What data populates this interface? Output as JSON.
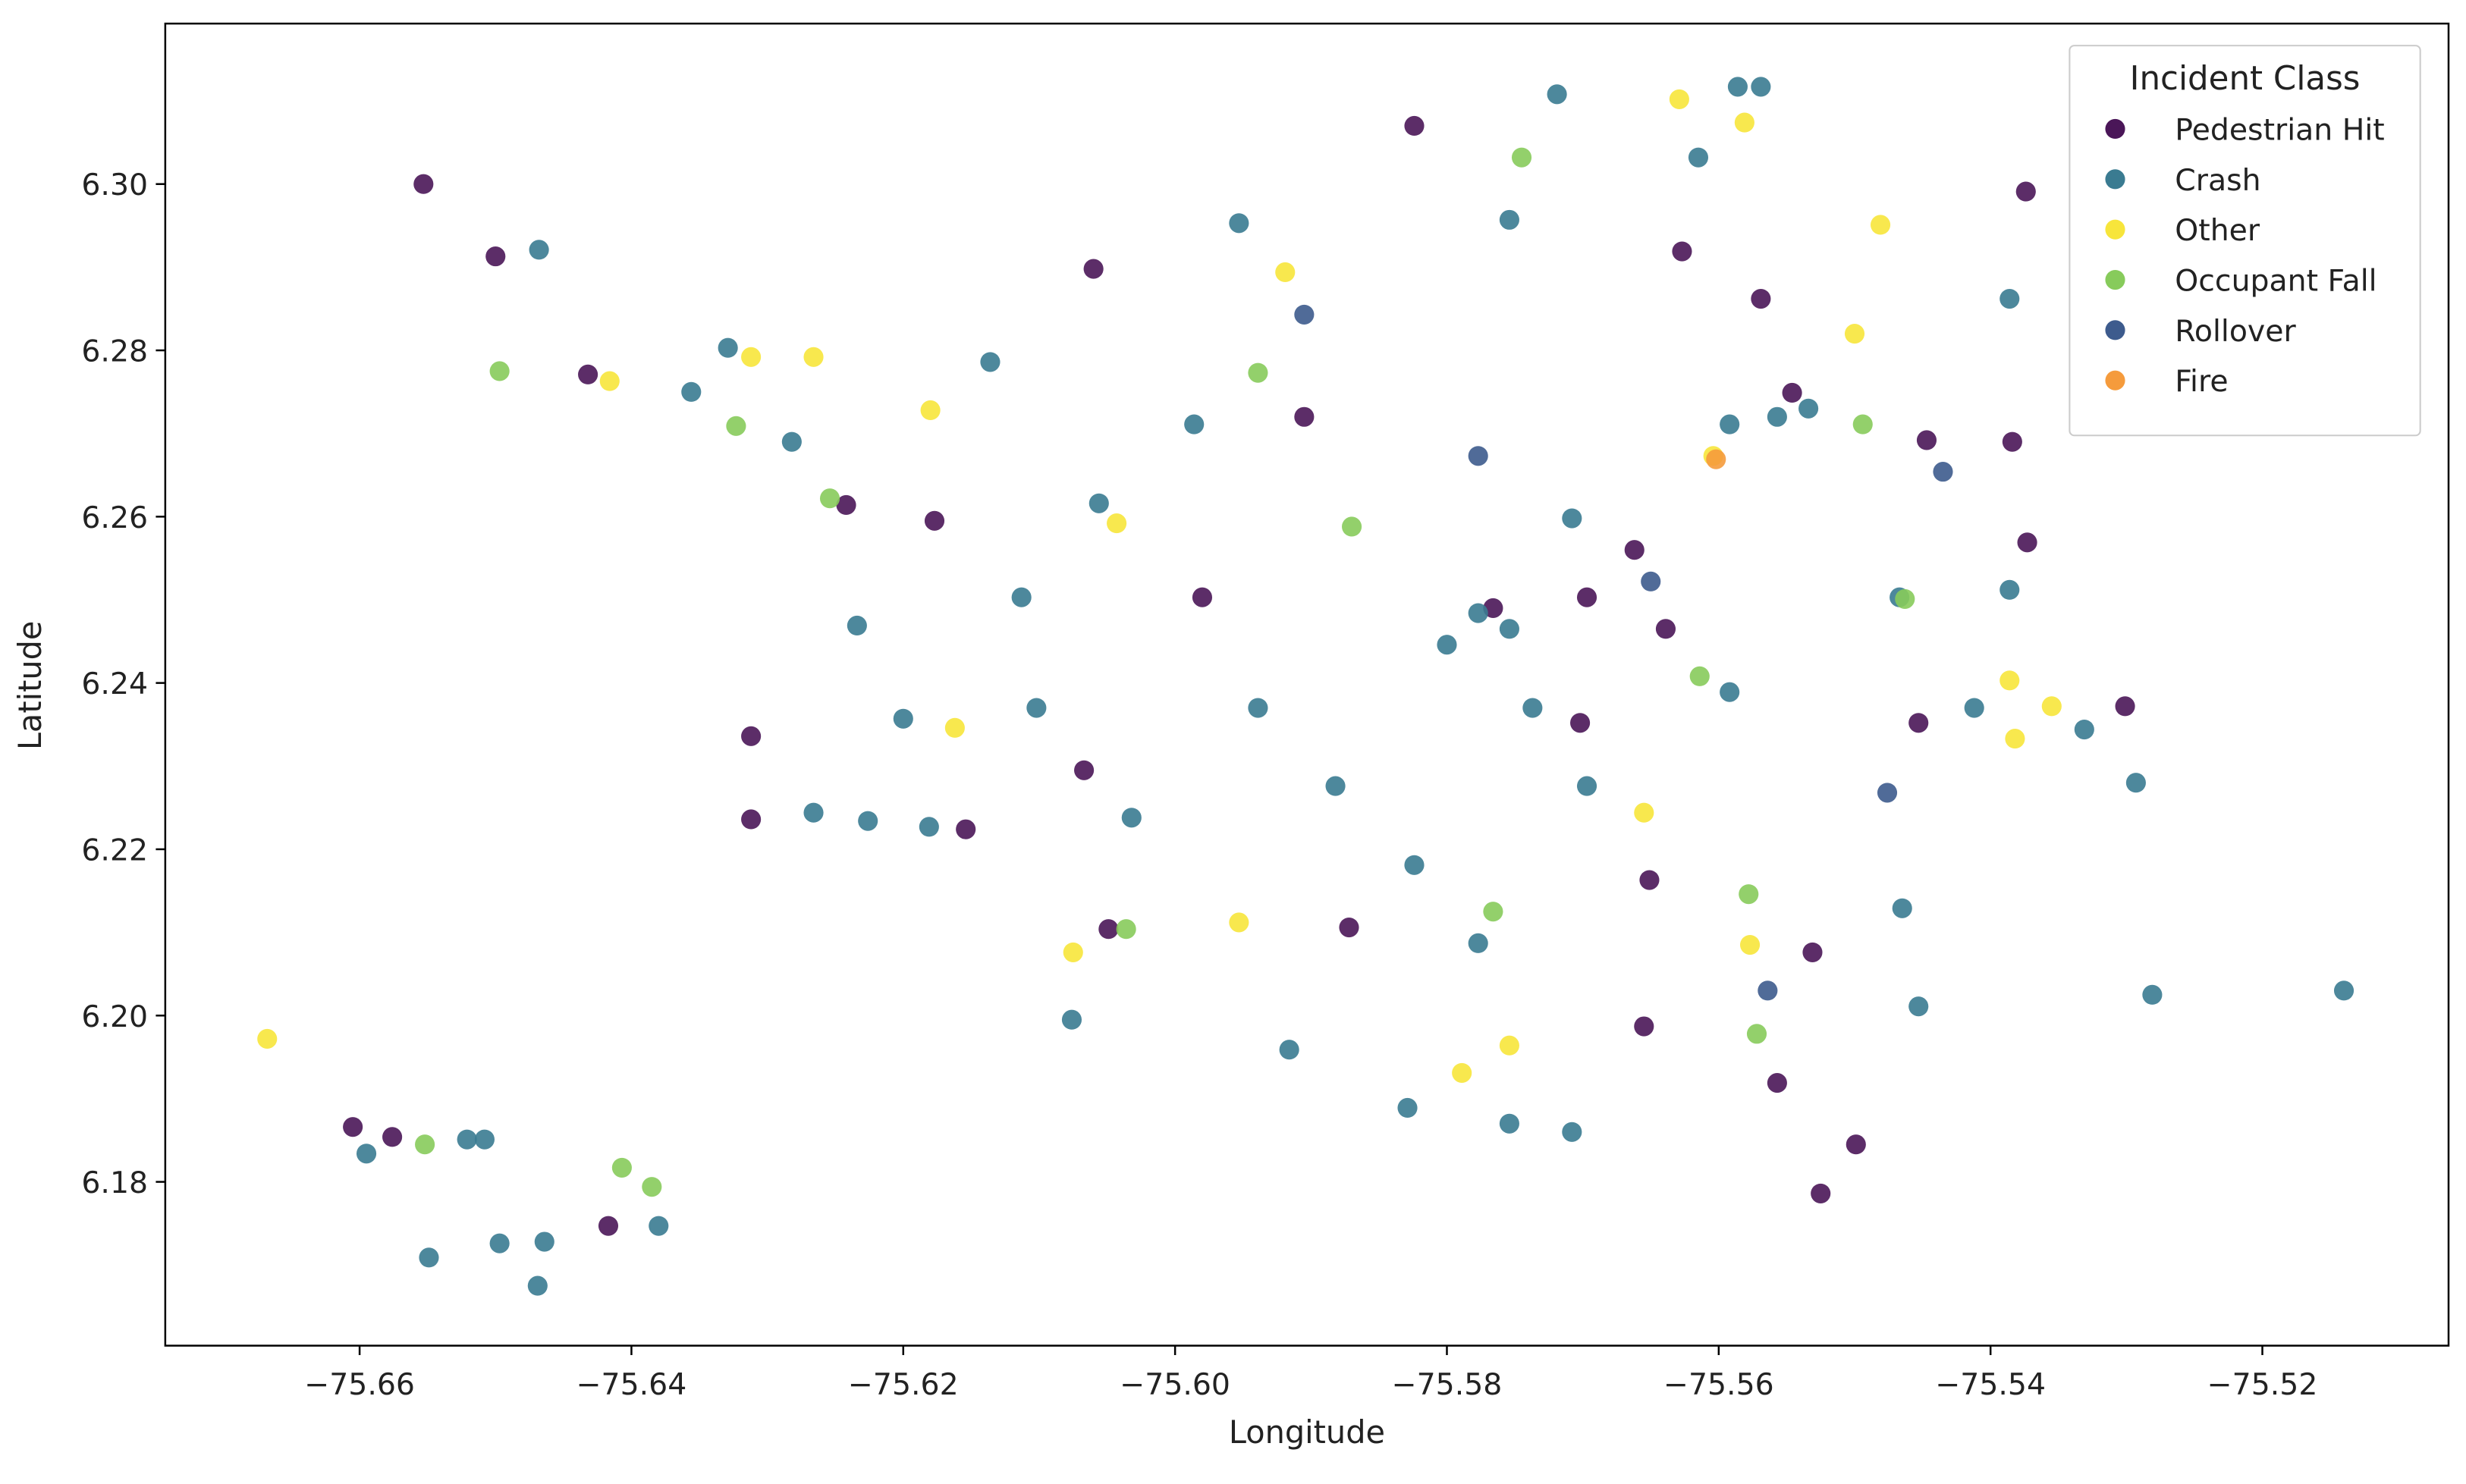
{
  "chart_data": {
    "type": "scatter",
    "x_label": "Longitude",
    "y_label": "Latitude",
    "legend_title": "Incident Class",
    "legend_position": "upper right",
    "grid": false,
    "xlim": [
      -75.6743,
      -75.5063
    ],
    "ylim": [
      6.1603,
      6.3193
    ],
    "xticks": [
      {
        "value": -75.66,
        "label": "−75.66"
      },
      {
        "value": -75.64,
        "label": "−75.64"
      },
      {
        "value": -75.62,
        "label": "−75.62"
      },
      {
        "value": -75.6,
        "label": "−75.60"
      },
      {
        "value": -75.58,
        "label": "−75.58"
      },
      {
        "value": -75.56,
        "label": "−75.56"
      },
      {
        "value": -75.54,
        "label": "−75.54"
      },
      {
        "value": -75.52,
        "label": "−75.52"
      }
    ],
    "yticks": [
      6.18,
      {
        "value": 6.2,
        "label": "6.20"
      },
      6.22,
      6.24,
      6.26,
      6.28,
      {
        "value": 6.3,
        "label": "6.30"
      }
    ],
    "series": [
      {
        "name": "Pedestrian Hit",
        "color": "#4a1658",
        "x": [
          -75.6553,
          -75.65,
          -75.6432,
          -75.6605,
          -75.6576,
          -75.6417,
          -75.5525,
          -75.5499,
          -75.6312,
          -75.6312,
          -75.606,
          -75.5374,
          -75.5384,
          -75.5373,
          -75.5301,
          -75.6242,
          -75.6177,
          -75.6154,
          -75.6049,
          -75.5655,
          -75.5557,
          -75.5531,
          -75.5766,
          -75.5697,
          -75.5662,
          -75.5639,
          -75.5546,
          -75.5569,
          -75.5627,
          -75.5824,
          -75.5905,
          -75.598,
          -75.5872,
          -75.5702,
          -75.5453,
          -75.5447,
          -75.5651,
          -75.6067
        ],
        "values": [
          6.3,
          6.2913,
          6.2771,
          6.1866,
          6.1854,
          6.1747,
          6.1786,
          6.1845,
          6.2336,
          6.2236,
          6.2898,
          6.2991,
          6.269,
          6.2569,
          6.2372,
          6.2614,
          6.2595,
          6.2224,
          6.2104,
          6.1987,
          6.1919,
          6.2076,
          6.249,
          6.2503,
          6.256,
          6.2465,
          6.2749,
          6.2862,
          6.2919,
          6.307,
          6.272,
          6.2503,
          6.2106,
          6.2352,
          6.2352,
          6.2692,
          6.2163,
          6.2295
        ]
      },
      {
        "name": "Crash",
        "color": "#3a7b91",
        "x": [
          -75.6468,
          -75.6595,
          -75.6521,
          -75.6508,
          -75.6549,
          -75.6497,
          -75.6464,
          -75.6469,
          -75.638,
          -75.6356,
          -75.6329,
          -75.6282,
          -75.6266,
          -75.6226,
          -75.6181,
          -75.62,
          -75.6234,
          -75.6076,
          -75.5953,
          -75.5281,
          -75.514,
          -75.5293,
          -75.5331,
          -75.5412,
          -75.5465,
          -75.5453,
          -75.5708,
          -75.5754,
          -75.5916,
          -75.5829,
          -75.5586,
          -75.5569,
          -75.5615,
          -75.5754,
          -75.5719,
          -75.5777,
          -75.5754,
          -75.58,
          -75.5737,
          -75.5708,
          -75.5592,
          -75.5557,
          -75.5534,
          -75.5986,
          -75.6056,
          -75.6113,
          -75.5939,
          -75.5882,
          -75.5824,
          -75.5777,
          -75.6136,
          -75.5386,
          -75.5467,
          -75.5386,
          -75.5592,
          -75.5697,
          -75.6032,
          -75.6102
        ],
        "values": [
          6.2921,
          6.1834,
          6.1851,
          6.1851,
          6.1709,
          6.1726,
          6.1728,
          6.1675,
          6.1747,
          6.275,
          6.2803,
          6.269,
          6.2244,
          6.2234,
          6.2227,
          6.2357,
          6.2469,
          6.1995,
          6.2953,
          6.2025,
          6.203,
          6.228,
          6.2344,
          6.237,
          6.2129,
          6.2011,
          6.186,
          6.187,
          6.1959,
          6.1889,
          6.3117,
          6.3117,
          6.3032,
          6.2957,
          6.3108,
          6.2484,
          6.2465,
          6.2446,
          6.237,
          6.2598,
          6.2711,
          6.272,
          6.273,
          6.2711,
          6.2616,
          6.2503,
          6.237,
          6.2276,
          6.2181,
          6.2087,
          6.2786,
          6.2862,
          6.2503,
          6.2512,
          6.2389,
          6.2276,
          6.2238,
          6.237
        ]
      },
      {
        "name": "Other",
        "color": "#f7e53b",
        "x": [
          -75.6668,
          -75.6416,
          -75.6312,
          -75.6266,
          -75.618,
          -75.6162,
          -75.6075,
          -75.5953,
          -75.5919,
          -75.5629,
          -75.5581,
          -75.5481,
          -75.5382,
          -75.5355,
          -75.5386,
          -75.5789,
          -75.5754,
          -75.5655,
          -75.5577,
          -75.6043,
          -75.55,
          -75.5604
        ],
        "values": [
          6.1972,
          6.2763,
          6.2792,
          6.2792,
          6.2728,
          6.2346,
          6.2076,
          6.2112,
          6.2894,
          6.3102,
          6.3074,
          6.2951,
          6.2333,
          6.2372,
          6.2403,
          6.1931,
          6.1964,
          6.2244,
          6.2085,
          6.2592,
          6.282,
          6.2673
        ]
      },
      {
        "name": "Occupant Fall",
        "color": "#87cb5b",
        "x": [
          -75.6497,
          -75.6552,
          -75.6407,
          -75.6385,
          -75.6254,
          -75.6323,
          -75.6036,
          -75.5572,
          -75.5578,
          -75.5463,
          -75.5494,
          -75.5745,
          -75.5939,
          -75.587,
          -75.5766,
          -75.5614
        ],
        "values": [
          6.2775,
          6.1845,
          6.1817,
          6.1794,
          6.2622,
          6.2709,
          6.2104,
          6.1978,
          6.2146,
          6.2501,
          6.2711,
          6.3032,
          6.2773,
          6.2588,
          6.2125,
          6.2408
        ]
      },
      {
        "name": "Rollover",
        "color": "#3d5b8d",
        "x": [
          -75.5564,
          -75.5476,
          -75.5435,
          -75.5777,
          -75.565,
          -75.5905
        ],
        "values": [
          6.203,
          6.2268,
          6.2654,
          6.2673,
          6.2522,
          6.2843
        ]
      },
      {
        "name": "Fire",
        "color": "#f59b3c",
        "x": [
          -75.5602
        ],
        "values": [
          6.2669
        ]
      }
    ]
  }
}
